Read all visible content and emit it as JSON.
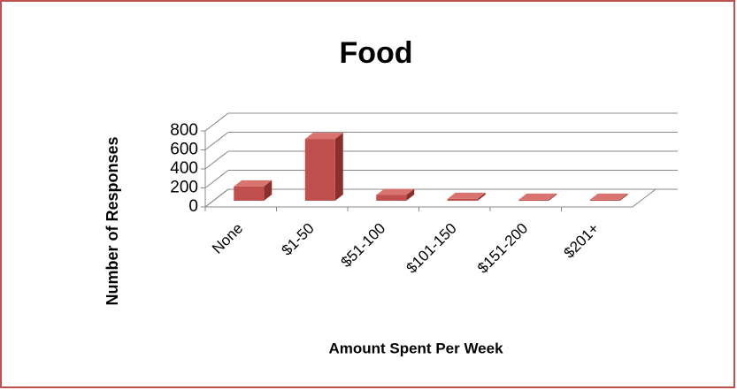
{
  "chart_data": {
    "type": "bar3d",
    "title": "Food",
    "x_label": "Amount Spent Per Week",
    "y_label": "Number of Responses",
    "categories": [
      "None",
      "$1-50",
      "$51-100",
      "$101-150",
      "$151-200",
      "$201+"
    ],
    "values": [
      150,
      650,
      60,
      20,
      10,
      10
    ],
    "color": "#c0504d",
    "ylim": [
      0,
      800
    ],
    "yticks": [
      0,
      200,
      400,
      600,
      800
    ],
    "grid": true
  }
}
